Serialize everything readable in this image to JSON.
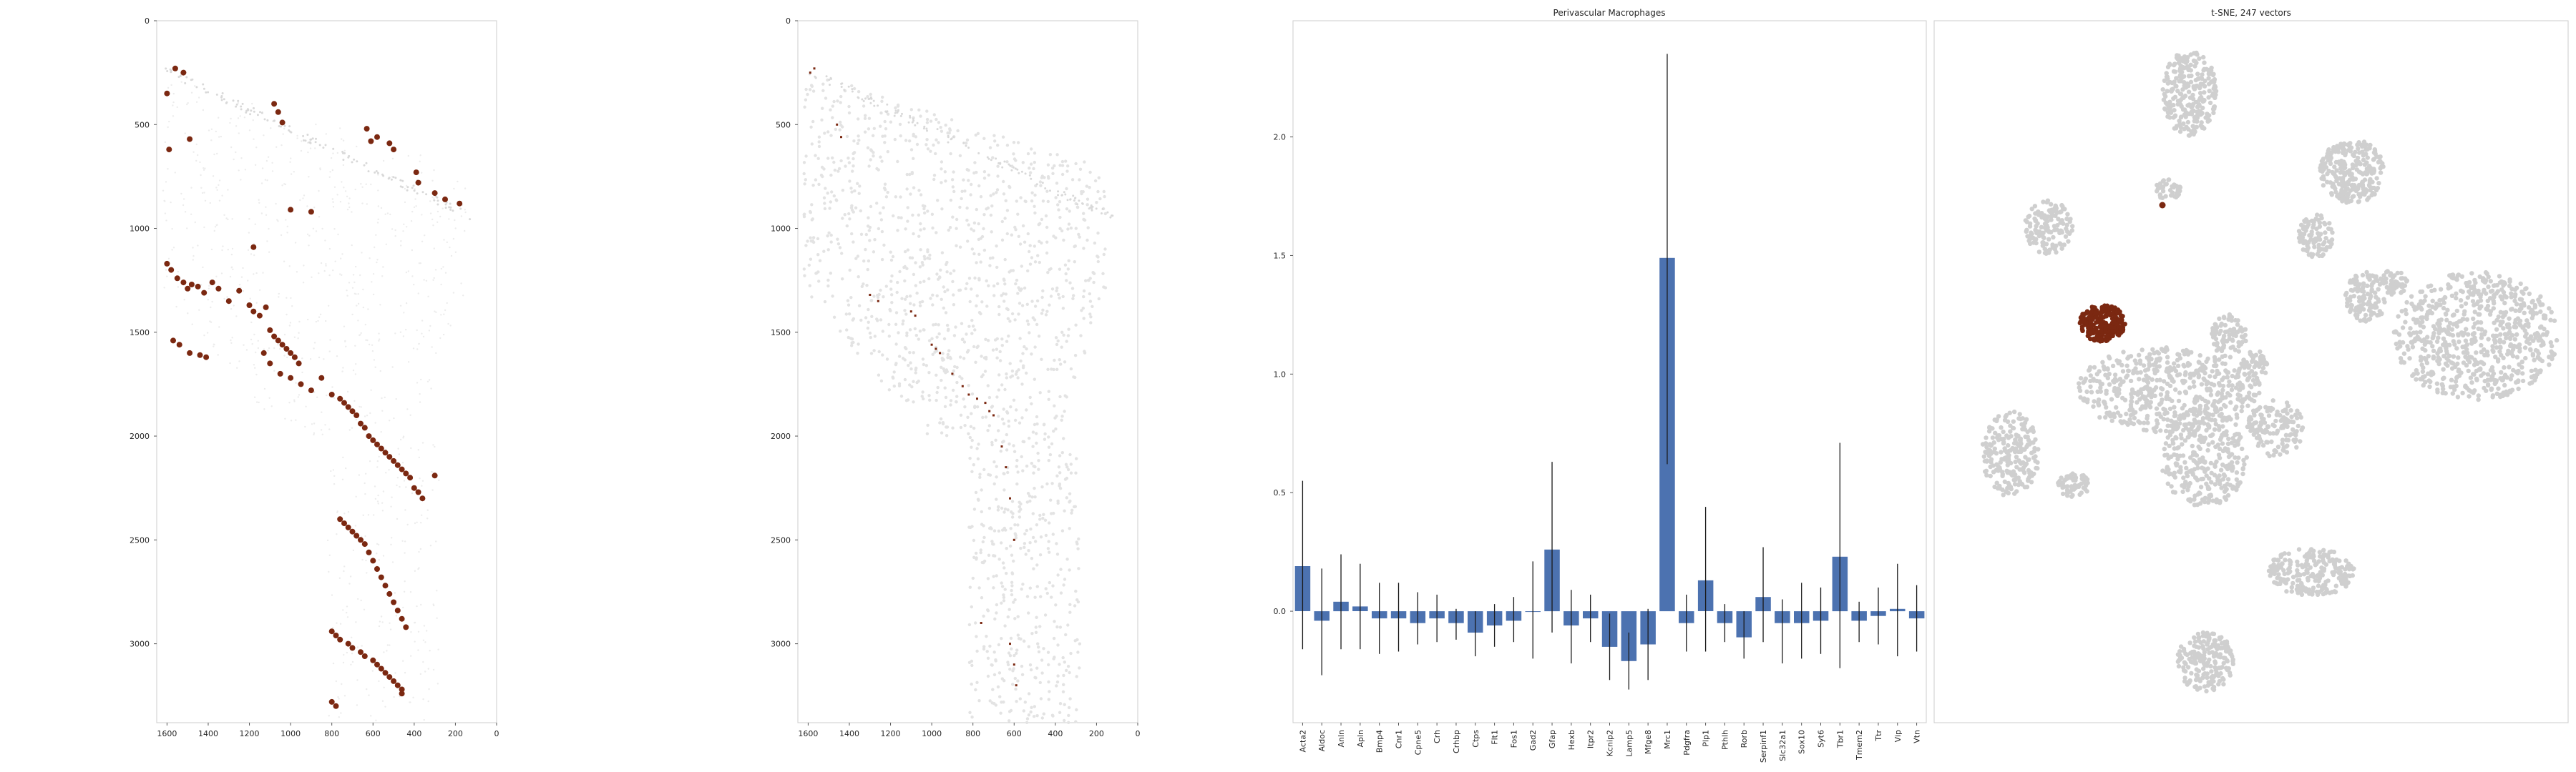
{
  "colors": {
    "highlight": "#7b2811",
    "background_cells": "#cfcfcf",
    "bar": "#4c72b0",
    "frame": "#cccccc",
    "errbar": "#1a1a1a"
  },
  "chart_data": [
    {
      "type": "scatter",
      "title": "",
      "xlabel": "",
      "ylabel": "",
      "xlim": [
        1650,
        0
      ],
      "ylim": [
        3380,
        0
      ],
      "x_ticks": [
        1600,
        1400,
        1200,
        1000,
        800,
        600,
        400,
        200,
        0
      ],
      "y_ticks": [
        0,
        500,
        1000,
        1500,
        2000,
        2500,
        3000
      ],
      "grid": false,
      "series": [
        {
          "role": "highlighted cells",
          "x": [
            1560,
            1520,
            1600,
            1590,
            1490,
            1080,
            1060,
            1040,
            630,
            610,
            580,
            520,
            500,
            390,
            380,
            300,
            250,
            180,
            1000,
            900,
            1180,
            1600,
            1580,
            1550,
            1520,
            1500,
            1480,
            1450,
            1420,
            1380,
            1350,
            1300,
            1250,
            1200,
            1180,
            1150,
            1120,
            1100,
            1080,
            1060,
            1040,
            1020,
            1000,
            980,
            960,
            1570,
            1540,
            1490,
            1440,
            1410,
            1130,
            1100,
            1050,
            1000,
            950,
            900,
            850,
            800,
            760,
            740,
            720,
            700,
            680,
            660,
            640,
            620,
            600,
            580,
            560,
            540,
            520,
            500,
            480,
            460,
            440,
            420,
            400,
            380,
            360,
            300,
            760,
            740,
            720,
            700,
            680,
            660,
            640,
            620,
            600,
            580,
            560,
            540,
            520,
            500,
            480,
            460,
            440,
            800,
            780,
            760,
            720,
            700,
            660,
            640,
            600,
            580,
            560,
            540,
            520,
            500,
            480,
            460,
            460,
            800,
            780
          ],
          "y": [
            230,
            250,
            350,
            620,
            570,
            400,
            440,
            490,
            520,
            580,
            560,
            590,
            620,
            730,
            780,
            830,
            860,
            880,
            910,
            920,
            1090,
            1170,
            1200,
            1240,
            1260,
            1290,
            1270,
            1280,
            1310,
            1260,
            1290,
            1350,
            1300,
            1370,
            1400,
            1420,
            1380,
            1490,
            1520,
            1540,
            1560,
            1580,
            1600,
            1620,
            1650,
            1540,
            1560,
            1600,
            1610,
            1620,
            1600,
            1650,
            1700,
            1720,
            1750,
            1780,
            1720,
            1800,
            1820,
            1840,
            1860,
            1880,
            1900,
            1940,
            1960,
            2000,
            2020,
            2040,
            2060,
            2080,
            2100,
            2120,
            2140,
            2160,
            2180,
            2200,
            2250,
            2270,
            2300,
            2190,
            2400,
            2420,
            2440,
            2460,
            2480,
            2500,
            2520,
            2560,
            2600,
            2640,
            2680,
            2720,
            2760,
            2800,
            2840,
            2880,
            2920,
            2940,
            2960,
            2980,
            3000,
            3020,
            3040,
            3060,
            3080,
            3100,
            3120,
            3140,
            3160,
            3180,
            3200,
            3220,
            3240,
            3280,
            3300
          ]
        }
      ]
    },
    {
      "type": "scatter",
      "title": "",
      "xlabel": "",
      "ylabel": "",
      "xlim": [
        1650,
        0
      ],
      "ylim": [
        3380,
        0
      ],
      "x_ticks": [
        1600,
        1400,
        1200,
        1000,
        800,
        600,
        400,
        200,
        0
      ],
      "y_ticks": [
        0,
        500,
        1000,
        1500,
        2000,
        2500,
        3000
      ],
      "grid": false,
      "series": [
        {
          "role": "highlighted cells",
          "x": [
            1590,
            1570,
            1460,
            1440,
            1300,
            1260,
            1100,
            1080,
            1000,
            980,
            960,
            900,
            850,
            820,
            780,
            740,
            720,
            700,
            660,
            640,
            620,
            600,
            760,
            620,
            600,
            590
          ],
          "y": [
            250,
            230,
            500,
            560,
            1320,
            1350,
            1400,
            1420,
            1560,
            1580,
            1600,
            1700,
            1760,
            1800,
            1820,
            1840,
            1880,
            1900,
            2050,
            2150,
            2300,
            2500,
            2900,
            3000,
            3100,
            3200
          ]
        }
      ]
    },
    {
      "type": "bar",
      "title": "Perivascular Macrophages",
      "xlabel": "",
      "ylabel": "",
      "ylim": [
        -0.47,
        2.49
      ],
      "y_ticks": [
        0.0,
        0.5,
        1.0,
        1.5,
        2.0
      ],
      "y_tick_labels": [
        "0.0",
        "0.5",
        "1.0",
        "1.5",
        "2.0"
      ],
      "categories": [
        "Acta2",
        "Aldoc",
        "Anln",
        "Apln",
        "Bmp4",
        "Cnr1",
        "Cpne5",
        "Crh",
        "Crhbp",
        "Ctps",
        "Flt1",
        "Fos1",
        "Gad2",
        "Gfap",
        "Hexb",
        "Itpr2",
        "Kcnip2",
        "Lamp5",
        "Mfge8",
        "Mrc1",
        "Pdgfra",
        "Plp1",
        "Pthlh",
        "Rorb",
        "Serpinf1",
        "Slc32a1",
        "Sox10",
        "Syt6",
        "Tbr1",
        "Tmem2",
        "Ttr",
        "Vip",
        "Vtn"
      ],
      "values": [
        0.19,
        -0.04,
        0.04,
        0.02,
        -0.03,
        -0.03,
        -0.05,
        -0.03,
        -0.05,
        -0.09,
        -0.06,
        -0.04,
        0.0,
        0.26,
        -0.06,
        -0.03,
        -0.15,
        -0.21,
        -0.14,
        1.49,
        -0.05,
        0.13,
        -0.05,
        -0.11,
        0.06,
        -0.05,
        -0.05,
        -0.04,
        0.23,
        -0.04,
        -0.02,
        0.01,
        -0.03
      ],
      "err_low": [
        -0.16,
        -0.27,
        -0.16,
        -0.16,
        -0.18,
        -0.17,
        -0.14,
        -0.13,
        -0.12,
        -0.19,
        -0.15,
        -0.13,
        -0.2,
        -0.09,
        -0.22,
        -0.13,
        -0.29,
        -0.33,
        -0.29,
        0.62,
        -0.17,
        -0.17,
        -0.13,
        -0.2,
        -0.13,
        -0.22,
        -0.2,
        -0.18,
        -0.24,
        -0.13,
        -0.14,
        -0.19,
        -0.17
      ],
      "err_high": [
        0.55,
        0.18,
        0.24,
        0.2,
        0.12,
        0.12,
        0.08,
        0.07,
        0.01,
        0.0,
        0.03,
        0.06,
        0.21,
        0.63,
        0.09,
        0.07,
        -0.01,
        -0.09,
        0.01,
        2.35,
        0.07,
        0.44,
        0.03,
        0.0,
        0.27,
        0.05,
        0.12,
        0.1,
        0.71,
        0.04,
        0.1,
        0.2,
        0.11
      ]
    },
    {
      "type": "scatter",
      "title": "t-SNE, 247 vectors",
      "xlabel": "",
      "ylabel": "",
      "grid": false,
      "series": [
        {
          "role": "other cells",
          "color": "#cfcfcf"
        },
        {
          "role": "highlighted cluster",
          "color": "#7b2811"
        }
      ]
    }
  ]
}
